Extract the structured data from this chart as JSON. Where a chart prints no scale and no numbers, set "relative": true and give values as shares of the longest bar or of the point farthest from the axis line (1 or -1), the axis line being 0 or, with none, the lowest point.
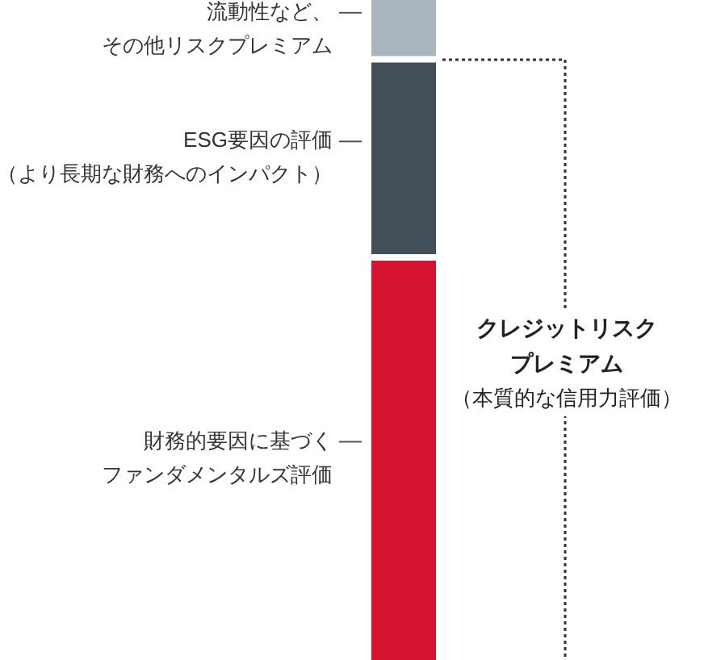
{
  "chart_data": {
    "type": "bar",
    "relative": true,
    "stacked": true,
    "categories": [
      null
    ],
    "legend": "left",
    "series": [
      {
        "name": "財務的要因に基づくファンダメンタルズ評価",
        "color": "#d7142f",
        "values": [
          0.61
        ]
      },
      {
        "name": "ESG要因の評価（より長期な財務へのインパクト）",
        "color": "#424e58",
        "values": [
          0.3
        ]
      },
      {
        "name": "流動性など、その他リスクプレミアム",
        "color": "#a9b5be",
        "values": [
          0.09
        ]
      }
    ],
    "annotations": [
      "クレジットリスクプレミアム",
      "（本質的な信用力評価）"
    ]
  }
}
